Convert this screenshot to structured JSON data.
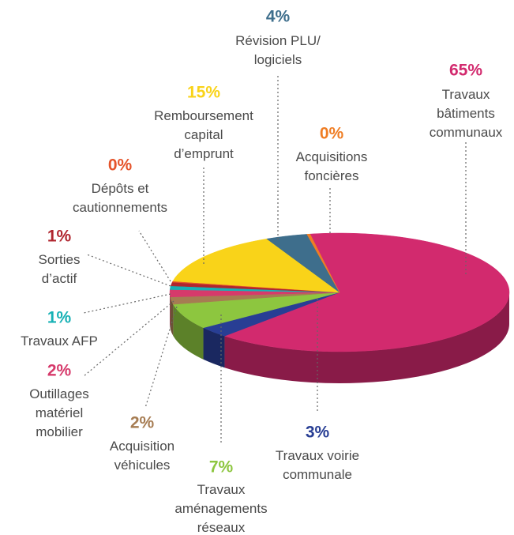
{
  "chart_data": {
    "type": "pie3d",
    "categories": [
      "Travaux\nbâtiments\ncommunaux",
      "Travaux voirie\ncommunale",
      "Travaux\naménagements\nréseaux",
      "Acquisition\nvéhicules",
      "Outillages\nmatériel\nmobilier",
      "Travaux AFP",
      "Sorties\nd’actif",
      "Dépôts et\ncautionnements",
      "Remboursement\ncapital\nd’emprunt",
      "Révision PLU/\nlogiciels",
      "Acquisitions\nfoncières"
    ],
    "values": [
      65,
      3,
      7,
      2,
      2,
      1,
      1,
      0.3,
      15,
      4,
      0.3
    ],
    "value_labels": [
      "65%",
      "3%",
      "7%",
      "2%",
      "2%",
      "1%",
      "1%",
      "0%",
      "15%",
      "4%",
      "0%"
    ],
    "colors": [
      "#d22a6e",
      "#283e94",
      "#8dc63f",
      "#a67c52",
      "#d63a6b",
      "#17b1b5",
      "#b0262f",
      "#e5542b",
      "#f9d319",
      "#3e6e8c",
      "#ef7d24"
    ]
  }
}
